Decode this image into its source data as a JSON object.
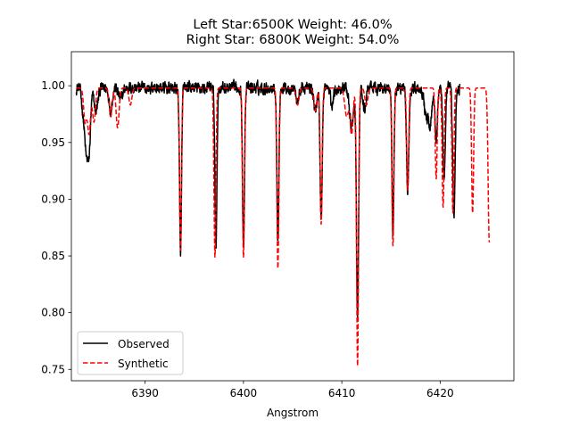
{
  "chart_data": {
    "type": "line",
    "title_lines": [
      "Left Star:6500K  Weight: 46.0%",
      "Right Star: 6800K  Weight: 54.0%"
    ],
    "xlabel": "Angstrom",
    "ylabel": "",
    "xlim": [
      6382.5,
      6427.5
    ],
    "ylim": [
      0.74,
      1.03
    ],
    "xticks": [
      6390,
      6400,
      6410,
      6420
    ],
    "yticks": [
      0.75,
      0.8,
      0.85,
      0.9,
      0.95,
      1.0
    ],
    "xtick_labels": [
      "6390",
      "6400",
      "6410",
      "6420"
    ],
    "ytick_labels": [
      "0.75",
      "0.80",
      "0.85",
      "0.90",
      "0.95",
      "1.00"
    ],
    "grid": false,
    "legend_position": "lower-left",
    "series": [
      {
        "name": "Observed",
        "color": "#000000",
        "style": "solid",
        "x_range": [
          6383.0,
          6422.0
        ],
        "continuum": 0.998,
        "noise": 0.009,
        "lines": [
          {
            "center": 6383.7,
            "depth": 0.02,
            "width": 0.15
          },
          {
            "center": 6384.0,
            "depth": 0.05,
            "width": 0.15
          },
          {
            "center": 6384.3,
            "depth": 0.055,
            "width": 0.15
          },
          {
            "center": 6385.0,
            "depth": 0.02,
            "width": 0.2
          },
          {
            "center": 6386.5,
            "depth": 0.02,
            "width": 0.15
          },
          {
            "center": 6387.5,
            "depth": 0.01,
            "width": 0.2
          },
          {
            "center": 6393.6,
            "depth": 0.145,
            "width": 0.1
          },
          {
            "center": 6397.2,
            "depth": 0.14,
            "width": 0.1
          },
          {
            "center": 6400.0,
            "depth": 0.14,
            "width": 0.1
          },
          {
            "center": 6403.5,
            "depth": 0.135,
            "width": 0.1
          },
          {
            "center": 6405.5,
            "depth": 0.012,
            "width": 0.15
          },
          {
            "center": 6407.3,
            "depth": 0.02,
            "width": 0.15
          },
          {
            "center": 6407.9,
            "depth": 0.115,
            "width": 0.11
          },
          {
            "center": 6409.0,
            "depth": 0.015,
            "width": 0.15
          },
          {
            "center": 6411.0,
            "depth": 0.035,
            "width": 0.2
          },
          {
            "center": 6411.6,
            "depth": 0.2,
            "width": 0.11
          },
          {
            "center": 6412.3,
            "depth": 0.02,
            "width": 0.15
          },
          {
            "center": 6415.2,
            "depth": 0.13,
            "width": 0.1
          },
          {
            "center": 6416.7,
            "depth": 0.09,
            "width": 0.12
          },
          {
            "center": 6418.6,
            "depth": 0.025,
            "width": 0.2
          },
          {
            "center": 6419.0,
            "depth": 0.03,
            "width": 0.15
          },
          {
            "center": 6419.6,
            "depth": 0.045,
            "width": 0.12
          },
          {
            "center": 6420.4,
            "depth": 0.08,
            "width": 0.12
          },
          {
            "center": 6421.4,
            "depth": 0.115,
            "width": 0.12
          }
        ]
      },
      {
        "name": "Synthetic",
        "color": "#ff0000",
        "style": "dashed",
        "x_range": [
          6383.0,
          6425.0
        ],
        "continuum": 0.998,
        "noise": 0.0,
        "lines": [
          {
            "center": 6383.9,
            "depth": 0.03,
            "width": 0.15
          },
          {
            "center": 6384.3,
            "depth": 0.04,
            "width": 0.15
          },
          {
            "center": 6384.8,
            "depth": 0.03,
            "width": 0.15
          },
          {
            "center": 6386.5,
            "depth": 0.025,
            "width": 0.15
          },
          {
            "center": 6387.2,
            "depth": 0.035,
            "width": 0.15
          },
          {
            "center": 6388.5,
            "depth": 0.015,
            "width": 0.15
          },
          {
            "center": 6393.6,
            "depth": 0.143,
            "width": 0.1
          },
          {
            "center": 6397.1,
            "depth": 0.149,
            "width": 0.1
          },
          {
            "center": 6400.0,
            "depth": 0.149,
            "width": 0.1
          },
          {
            "center": 6403.5,
            "depth": 0.159,
            "width": 0.1
          },
          {
            "center": 6405.5,
            "depth": 0.015,
            "width": 0.15
          },
          {
            "center": 6407.3,
            "depth": 0.02,
            "width": 0.15
          },
          {
            "center": 6407.9,
            "depth": 0.12,
            "width": 0.1
          },
          {
            "center": 6410.5,
            "depth": 0.025,
            "width": 0.2
          },
          {
            "center": 6411.0,
            "depth": 0.04,
            "width": 0.15
          },
          {
            "center": 6411.6,
            "depth": 0.245,
            "width": 0.1
          },
          {
            "center": 6412.5,
            "depth": 0.015,
            "width": 0.15
          },
          {
            "center": 6415.2,
            "depth": 0.139,
            "width": 0.1
          },
          {
            "center": 6416.7,
            "depth": 0.09,
            "width": 0.1
          },
          {
            "center": 6419.6,
            "depth": 0.08,
            "width": 0.1
          },
          {
            "center": 6420.3,
            "depth": 0.105,
            "width": 0.1
          },
          {
            "center": 6421.3,
            "depth": 0.11,
            "width": 0.1
          },
          {
            "center": 6423.3,
            "depth": 0.11,
            "width": 0.1
          },
          {
            "center": 6425.0,
            "depth": 0.136,
            "width": 0.12
          }
        ]
      }
    ]
  }
}
